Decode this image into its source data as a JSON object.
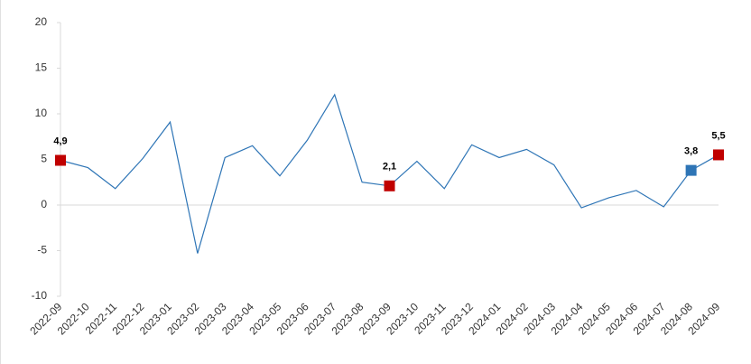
{
  "chart_data": {
    "type": "line",
    "categories": [
      "2022-09",
      "2022-10",
      "2022-11",
      "2022-12",
      "2023-01",
      "2023-02",
      "2023-03",
      "2023-04",
      "2023-05",
      "2023-06",
      "2023-07",
      "2023-08",
      "2023-09",
      "2023-10",
      "2023-11",
      "2023-12",
      "2024-01",
      "2024-02",
      "2024-03",
      "2024-04",
      "2024-05",
      "2024-06",
      "2024-07",
      "2024-08",
      "2024-09"
    ],
    "values": [
      4.9,
      4.1,
      1.8,
      5.1,
      9.1,
      -5.3,
      5.2,
      6.5,
      3.2,
      7.1,
      12.1,
      2.5,
      2.1,
      4.8,
      1.8,
      6.6,
      5.2,
      6.1,
      4.4,
      -0.3,
      0.8,
      1.6,
      -0.2,
      3.8,
      5.5
    ],
    "value_labels": [
      "4,9",
      null,
      null,
      null,
      null,
      null,
      null,
      null,
      null,
      null,
      null,
      null,
      "2,1",
      null,
      null,
      null,
      null,
      null,
      null,
      null,
      null,
      null,
      null,
      "3,8",
      "5,5"
    ],
    "marker_colors": [
      "#c00000",
      null,
      null,
      null,
      null,
      null,
      null,
      null,
      null,
      null,
      null,
      null,
      "#c00000",
      null,
      null,
      null,
      null,
      null,
      null,
      null,
      null,
      null,
      null,
      "#2e75b6",
      "#c00000"
    ],
    "color": "#2e75b6",
    "ylim": [
      -10,
      20
    ],
    "yticks": [
      -10,
      -5,
      0,
      5,
      10,
      15,
      20
    ]
  }
}
